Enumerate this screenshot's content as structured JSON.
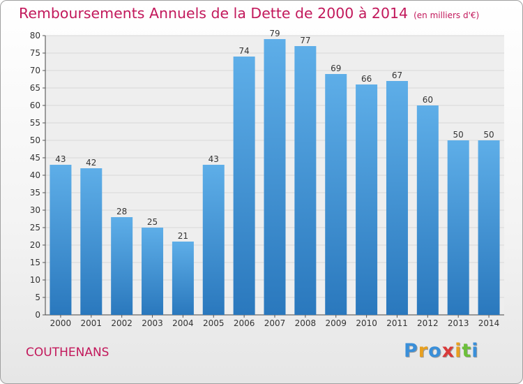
{
  "chart_data": {
    "type": "bar",
    "title": "Remboursements Annuels de la Dette de 2000 à 2014",
    "subtitle": "(en milliers d'€)",
    "categories": [
      "2000",
      "2001",
      "2002",
      "2003",
      "2004",
      "2005",
      "2006",
      "2007",
      "2008",
      "2009",
      "2010",
      "2011",
      "2012",
      "2013",
      "2014"
    ],
    "values": [
      43,
      42,
      28,
      25,
      21,
      43,
      74,
      79,
      77,
      69,
      66,
      67,
      60,
      50,
      50
    ],
    "xlabel": "",
    "ylabel": "",
    "ylim": [
      0,
      80
    ],
    "yticks": [
      0,
      5,
      10,
      15,
      20,
      25,
      30,
      35,
      40,
      45,
      50,
      55,
      60,
      65,
      70,
      75,
      80
    ],
    "grid": true,
    "legend": "none",
    "colors": {
      "bar_light": "#5eaee8",
      "bar_dark": "#2a78bd",
      "title": "#c2185b"
    }
  },
  "footer": {
    "commune": "COUTHENANS",
    "logo": {
      "letters": [
        {
          "char": "P",
          "color": "#3a8fd9"
        },
        {
          "char": "r",
          "color": "#e8a020"
        },
        {
          "char": "o",
          "color": "#3a8fd9"
        },
        {
          "char": "x",
          "color": "#d93a3a"
        },
        {
          "char": "i",
          "color": "#e8a020"
        },
        {
          "char": "t",
          "color": "#6cbf3a"
        },
        {
          "char": "i",
          "color": "#3a8fd9"
        }
      ]
    }
  }
}
